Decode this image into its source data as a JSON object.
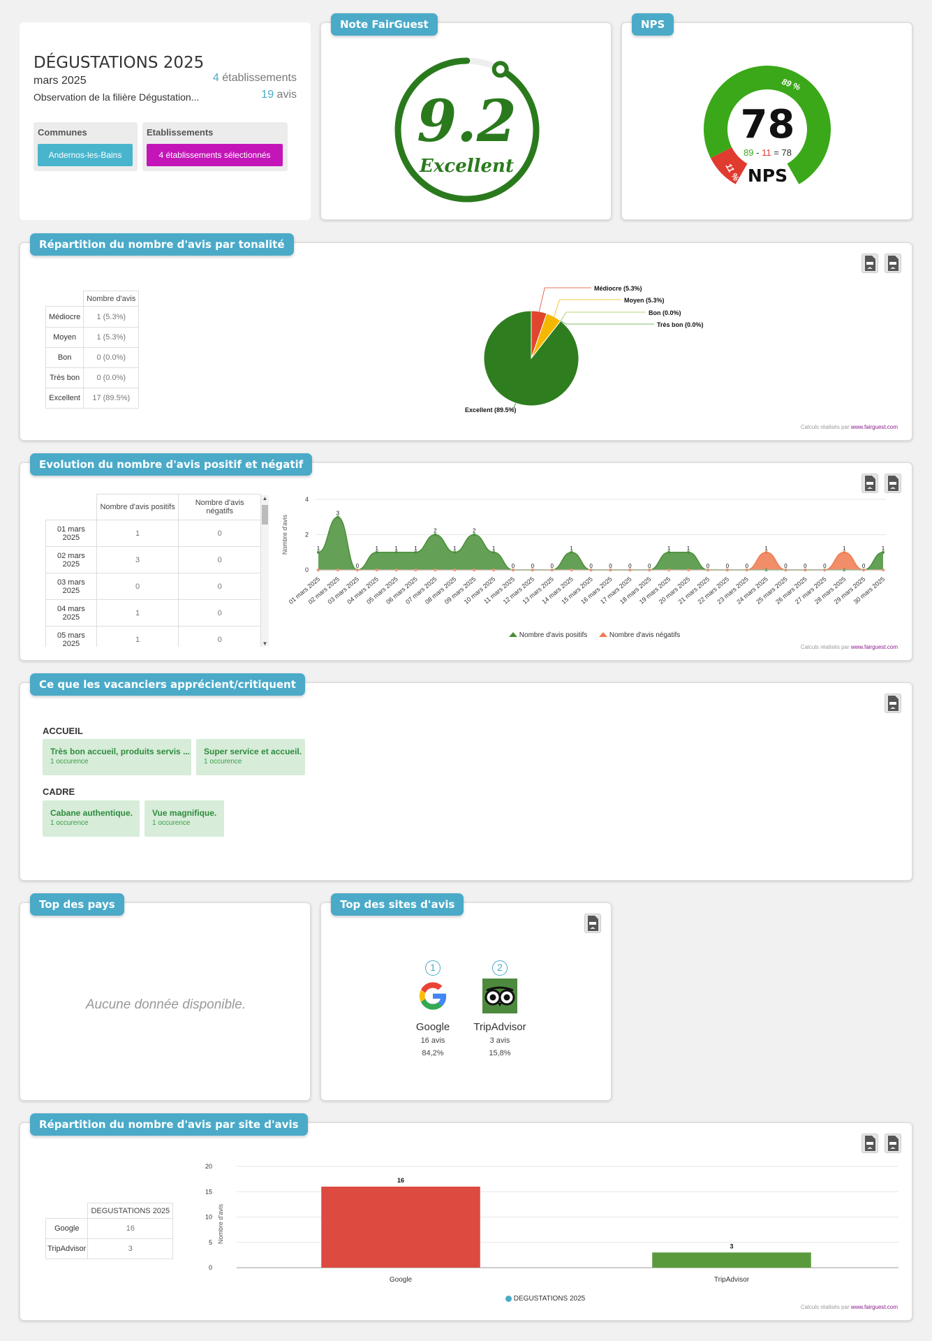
{
  "header": {
    "title": "DÉGUSTATIONS 2025",
    "period": "mars 2025",
    "description": "Observation de la filière Dégustation...",
    "etab_count": "4",
    "etab_label": "établissements",
    "avis_count": "19",
    "avis_label": "avis",
    "filters": {
      "communes_label": "Communes",
      "communes_value": "Andernos-les-Bains",
      "etab_filter_label": "Etablissements",
      "etab_filter_value": "4 établissements sélectionnés"
    }
  },
  "note": {
    "title": "Note FairGuest",
    "score": "9.2",
    "label": "Excellent",
    "score_fraction": 0.92,
    "color": "#2a7a1d"
  },
  "nps": {
    "title": "NPS",
    "value": "78",
    "positive_pct": "89 %",
    "negative_pct": "11 %",
    "formula_pos": "89",
    "formula_minus": "-",
    "formula_neg": "11",
    "formula_eq": "=",
    "formula_result": "78",
    "label": "NPS",
    "positive_color": "#3aa818",
    "negative_color": "#e03b2f"
  },
  "tonalite": {
    "title": "Répartition du nombre d'avis par tonalité",
    "table_header": "Nombre d'avis",
    "rows": [
      {
        "label": "Médiocre",
        "value": "1 (5.3%)"
      },
      {
        "label": "Moyen",
        "value": "1 (5.3%)"
      },
      {
        "label": "Bon",
        "value": "0 (0.0%)"
      },
      {
        "label": "Très bon",
        "value": "0 (0.0%)"
      },
      {
        "label": "Excellent",
        "value": "17 (89.5%)"
      }
    ],
    "credit_prefix": "Calculs réalisés par",
    "credit_site": "www.fairguest.com"
  },
  "chart_data": [
    {
      "type": "pie",
      "labels": [
        "Médiocre (5.3%)",
        "Moyen (5.3%)",
        "Bon (0.0%)",
        "Très bon (0.0%)",
        "Excellent (89.5%)"
      ],
      "values": [
        5.3,
        5.3,
        0.0,
        0.0,
        89.5
      ],
      "colors": [
        "#e0452e",
        "#f5b800",
        "#9ccc4a",
        "#5aa83a",
        "#2e7d1e"
      ]
    },
    {
      "type": "area",
      "x": [
        "01 mars 2025",
        "02 mars 2025",
        "03 mars 2025",
        "04 mars 2025",
        "05 mars 2025",
        "06 mars 2025",
        "07 mars 2025",
        "08 mars 2025",
        "09 mars 2025",
        "10 mars 2025",
        "11 mars 2025",
        "12 mars 2025",
        "13 mars 2025",
        "14 mars 2025",
        "15 mars 2025",
        "16 mars 2025",
        "17 mars 2025",
        "18 mars 2025",
        "19 mars 2025",
        "20 mars 2025",
        "21 mars 2025",
        "22 mars 2025",
        "23 mars 2025",
        "24 mars 2025",
        "25 mars 2025",
        "26 mars 2025",
        "27 mars 2025",
        "28 mars 2025",
        "29 mars 2025",
        "30 mars 2025"
      ],
      "series": [
        {
          "name": "Nombre d'avis positifs",
          "values": [
            1,
            3,
            0,
            1,
            1,
            1,
            2,
            1,
            2,
            1,
            0,
            0,
            0,
            1,
            0,
            0,
            0,
            0,
            1,
            1,
            0,
            0,
            0,
            0,
            0,
            0,
            0,
            0,
            0,
            1
          ],
          "color": "#4a8f3a"
        },
        {
          "name": "Nombre d'avis négatifs",
          "values": [
            0,
            0,
            0,
            0,
            0,
            0,
            0,
            0,
            0,
            0,
            0,
            0,
            0,
            0,
            0,
            0,
            0,
            0,
            0,
            0,
            0,
            0,
            0,
            1,
            0,
            0,
            0,
            1,
            0,
            0
          ],
          "color": "#ef7a4f"
        }
      ],
      "ylabel": "Nombre d'avis",
      "ylim": [
        0,
        4
      ],
      "yticks": [
        0,
        2,
        4
      ]
    },
    {
      "type": "bar",
      "categories": [
        "Google",
        "TripAdvisor"
      ],
      "series": [
        {
          "name": "DEGUSTATIONS 2025",
          "values": [
            16,
            3
          ]
        }
      ],
      "colors": [
        "#dc4a40",
        "#5a9a3c"
      ],
      "ylabel": "Nombre d'avis",
      "ylim": [
        0,
        20
      ],
      "yticks": [
        0,
        5,
        10,
        15,
        20
      ]
    }
  ],
  "evolution": {
    "title": "Evolution du nombre d'avis positif et négatif",
    "col1": "Nombre d'avis positifs",
    "col2": "Nombre d'avis négatifs",
    "rows": [
      {
        "date": "01 mars 2025",
        "pos": "1",
        "neg": "0"
      },
      {
        "date": "02 mars 2025",
        "pos": "3",
        "neg": "0"
      },
      {
        "date": "03 mars 2025",
        "pos": "0",
        "neg": "0"
      },
      {
        "date": "04 mars 2025",
        "pos": "1",
        "neg": "0"
      },
      {
        "date": "05 mars 2025",
        "pos": "1",
        "neg": "0"
      }
    ],
    "legend_pos": "Nombre d'avis positifs",
    "legend_neg": "Nombre d'avis négatifs"
  },
  "apprecient": {
    "title": "Ce que les vacanciers apprécient/critiquent",
    "sections": [
      {
        "heading": "ACCUEIL",
        "items": [
          {
            "text": "Très bon accueil, produits servis ...",
            "count": "1 occurence"
          },
          {
            "text": "Super service et accueil.",
            "count": "1 occurence"
          }
        ]
      },
      {
        "heading": "CADRE",
        "items": [
          {
            "text": "Cabane authentique.",
            "count": "1 occurence"
          },
          {
            "text": "Vue magnifique.",
            "count": "1 occurence"
          }
        ]
      }
    ]
  },
  "pays": {
    "title": "Top des pays",
    "empty": "Aucune donnée disponible."
  },
  "sites": {
    "title": "Top des sites d'avis",
    "items": [
      {
        "rank": "1",
        "name": "Google",
        "count": "16 avis",
        "pct": "84,2%"
      },
      {
        "rank": "2",
        "name": "TripAdvisor",
        "count": "3 avis",
        "pct": "15,8%"
      }
    ]
  },
  "site_repartition": {
    "title": "Répartition du nombre d'avis par site d'avis",
    "table_header": "DEGUSTATIONS 2025",
    "rows": [
      {
        "label": "Google",
        "value": "16"
      },
      {
        "label": "TripAdvisor",
        "value": "3"
      }
    ],
    "legend": "DEGUSTATIONS 2025"
  }
}
